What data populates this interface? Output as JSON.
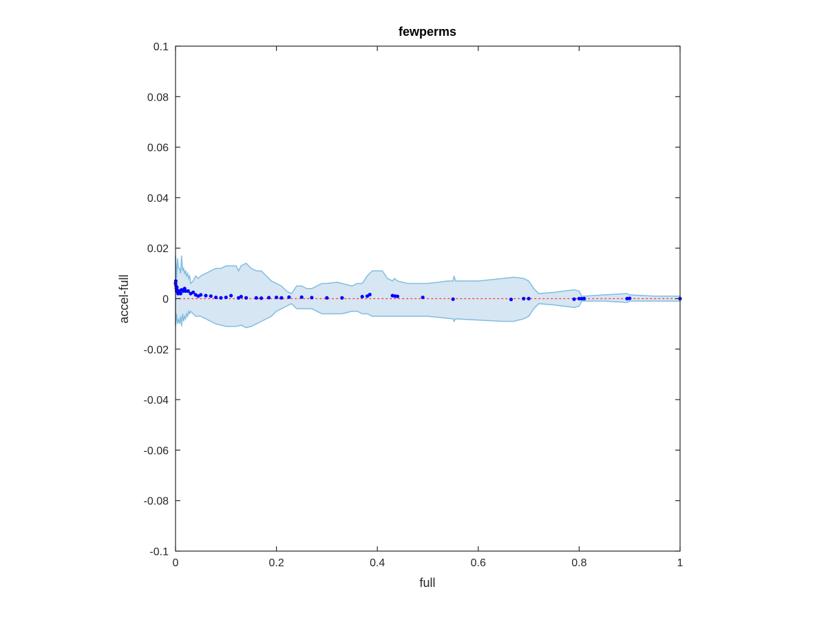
{
  "chart_data": {
    "type": "scatter",
    "title": "fewperms",
    "xlabel": "full",
    "ylabel": "accel-full",
    "xlim": [
      0,
      1
    ],
    "ylim": [
      -0.1,
      0.1
    ],
    "xticks": [
      "0",
      "0.2",
      "0.4",
      "0.6",
      "0.8",
      "1"
    ],
    "yticks": [
      "-0.1",
      "-0.08",
      "-0.06",
      "-0.04",
      "-0.02",
      "0",
      "0.02",
      "0.04",
      "0.06",
      "0.08",
      "0.1"
    ],
    "grid": false,
    "legend": "none",
    "colors": {
      "points": "#0000ff",
      "band_fill": "#d6e6f3",
      "band_edge": "#82bde0",
      "zero_line": "#ff4444"
    },
    "band_upper": [
      [
        0,
        0.017
      ],
      [
        0.002,
        0.008
      ],
      [
        0.004,
        0.016
      ],
      [
        0.006,
        0.012
      ],
      [
        0.008,
        0.012
      ],
      [
        0.01,
        0.01
      ],
      [
        0.012,
        0.017
      ],
      [
        0.014,
        0.011
      ],
      [
        0.016,
        0.012
      ],
      [
        0.018,
        0.01
      ],
      [
        0.02,
        0.011
      ],
      [
        0.022,
        0.009
      ],
      [
        0.024,
        0.01
      ],
      [
        0.026,
        0.008
      ],
      [
        0.028,
        0.009
      ],
      [
        0.03,
        0.006
      ],
      [
        0.035,
        0.007
      ],
      [
        0.04,
        0.009
      ],
      [
        0.045,
        0.008
      ],
      [
        0.05,
        0.009
      ],
      [
        0.06,
        0.01
      ],
      [
        0.07,
        0.011
      ],
      [
        0.08,
        0.012
      ],
      [
        0.09,
        0.012
      ],
      [
        0.1,
        0.013
      ],
      [
        0.11,
        0.013
      ],
      [
        0.12,
        0.013
      ],
      [
        0.125,
        0.011
      ],
      [
        0.13,
        0.013
      ],
      [
        0.14,
        0.014
      ],
      [
        0.15,
        0.012
      ],
      [
        0.16,
        0.011
      ],
      [
        0.17,
        0.011
      ],
      [
        0.18,
        0.009
      ],
      [
        0.19,
        0.007
      ],
      [
        0.2,
        0.006
      ],
      [
        0.21,
        0.005
      ],
      [
        0.22,
        0.003
      ],
      [
        0.23,
        0.002
      ],
      [
        0.24,
        0.005
      ],
      [
        0.25,
        0.005
      ],
      [
        0.26,
        0.004
      ],
      [
        0.27,
        0.004
      ],
      [
        0.28,
        0.005
      ],
      [
        0.29,
        0.006
      ],
      [
        0.3,
        0.006
      ],
      [
        0.32,
        0.0065
      ],
      [
        0.33,
        0.006
      ],
      [
        0.35,
        0.005
      ],
      [
        0.36,
        0.006
      ],
      [
        0.37,
        0.006
      ],
      [
        0.38,
        0.009
      ],
      [
        0.39,
        0.011
      ],
      [
        0.4,
        0.011
      ],
      [
        0.41,
        0.011
      ],
      [
        0.42,
        0.008
      ],
      [
        0.43,
        0.007
      ],
      [
        0.434,
        0.008
      ],
      [
        0.44,
        0.007
      ],
      [
        0.46,
        0.006
      ],
      [
        0.48,
        0.006
      ],
      [
        0.5,
        0.006
      ],
      [
        0.54,
        0.007
      ],
      [
        0.55,
        0.007
      ],
      [
        0.552,
        0.009
      ],
      [
        0.555,
        0.007
      ],
      [
        0.6,
        0.007
      ],
      [
        0.65,
        0.008
      ],
      [
        0.67,
        0.0085
      ],
      [
        0.69,
        0.008
      ],
      [
        0.7,
        0.007
      ],
      [
        0.71,
        0.004
      ],
      [
        0.72,
        0.002
      ],
      [
        0.75,
        0.0025
      ],
      [
        0.79,
        0.0035
      ],
      [
        0.8,
        0.003
      ],
      [
        0.805,
        0.001
      ],
      [
        0.81,
        0.001
      ],
      [
        0.85,
        0.0015
      ],
      [
        0.895,
        0.002
      ],
      [
        0.9,
        0.0015
      ],
      [
        0.95,
        0.001
      ],
      [
        1,
        0.001
      ]
    ],
    "band_lower": [
      [
        0,
        -0.011
      ],
      [
        0.002,
        -0.006
      ],
      [
        0.004,
        -0.01
      ],
      [
        0.006,
        -0.008
      ],
      [
        0.008,
        -0.01
      ],
      [
        0.01,
        -0.007
      ],
      [
        0.012,
        -0.011
      ],
      [
        0.014,
        -0.006
      ],
      [
        0.016,
        -0.009
      ],
      [
        0.018,
        -0.007
      ],
      [
        0.02,
        -0.008
      ],
      [
        0.022,
        -0.006
      ],
      [
        0.024,
        -0.007
      ],
      [
        0.026,
        -0.005
      ],
      [
        0.028,
        -0.006
      ],
      [
        0.03,
        -0.005
      ],
      [
        0.035,
        -0.006
      ],
      [
        0.04,
        -0.007
      ],
      [
        0.05,
        -0.007
      ],
      [
        0.06,
        -0.008
      ],
      [
        0.07,
        -0.009
      ],
      [
        0.08,
        -0.01
      ],
      [
        0.09,
        -0.0105
      ],
      [
        0.1,
        -0.011
      ],
      [
        0.11,
        -0.011
      ],
      [
        0.12,
        -0.011
      ],
      [
        0.13,
        -0.0105
      ],
      [
        0.14,
        -0.0115
      ],
      [
        0.15,
        -0.011
      ],
      [
        0.16,
        -0.01
      ],
      [
        0.17,
        -0.009
      ],
      [
        0.18,
        -0.008
      ],
      [
        0.19,
        -0.007
      ],
      [
        0.2,
        -0.005
      ],
      [
        0.21,
        -0.004
      ],
      [
        0.22,
        -0.003
      ],
      [
        0.23,
        -0.002
      ],
      [
        0.24,
        -0.004
      ],
      [
        0.25,
        -0.004
      ],
      [
        0.26,
        -0.004
      ],
      [
        0.27,
        -0.004
      ],
      [
        0.28,
        -0.005
      ],
      [
        0.29,
        -0.006
      ],
      [
        0.3,
        -0.006
      ],
      [
        0.32,
        -0.006
      ],
      [
        0.33,
        -0.006
      ],
      [
        0.35,
        -0.005
      ],
      [
        0.36,
        -0.005
      ],
      [
        0.37,
        -0.006
      ],
      [
        0.38,
        -0.006
      ],
      [
        0.39,
        -0.007
      ],
      [
        0.4,
        -0.007
      ],
      [
        0.43,
        -0.007
      ],
      [
        0.44,
        -0.007
      ],
      [
        0.48,
        -0.007
      ],
      [
        0.5,
        -0.007
      ],
      [
        0.55,
        -0.008
      ],
      [
        0.552,
        -0.009
      ],
      [
        0.555,
        -0.008
      ],
      [
        0.6,
        -0.0085
      ],
      [
        0.65,
        -0.009
      ],
      [
        0.67,
        -0.009
      ],
      [
        0.69,
        -0.008
      ],
      [
        0.7,
        -0.007
      ],
      [
        0.71,
        -0.004
      ],
      [
        0.72,
        -0.002
      ],
      [
        0.75,
        -0.0025
      ],
      [
        0.79,
        -0.0035
      ],
      [
        0.8,
        -0.003
      ],
      [
        0.805,
        -0.001
      ],
      [
        0.81,
        -0.001
      ],
      [
        0.85,
        -0.001
      ],
      [
        0.895,
        -0.0015
      ],
      [
        0.9,
        -0.001
      ],
      [
        0.95,
        -0.001
      ],
      [
        1,
        -0.001
      ]
    ],
    "points": [
      [
        0,
        0.006
      ],
      [
        0.0005,
        0.007
      ],
      [
        0.001,
        0.005
      ],
      [
        0.0015,
        0.004
      ],
      [
        0.002,
        0.003
      ],
      [
        0.0025,
        0.0045
      ],
      [
        0.003,
        0.0035
      ],
      [
        0.004,
        0.003
      ],
      [
        0.005,
        0.002
      ],
      [
        0.006,
        0.0025
      ],
      [
        0.008,
        0.003
      ],
      [
        0.01,
        0.002
      ],
      [
        0.012,
        0.0035
      ],
      [
        0.015,
        0.003
      ],
      [
        0.018,
        0.004
      ],
      [
        0.02,
        0.003
      ],
      [
        0.025,
        0.003
      ],
      [
        0.03,
        0.002
      ],
      [
        0.035,
        0.0025
      ],
      [
        0.04,
        0.0015
      ],
      [
        0.045,
        0.001
      ],
      [
        0.05,
        0.0015
      ],
      [
        0.06,
        0.0012
      ],
      [
        0.07,
        0.001
      ],
      [
        0.08,
        0.0005
      ],
      [
        0.09,
        0.0003
      ],
      [
        0.1,
        0.0005
      ],
      [
        0.11,
        0.0012
      ],
      [
        0.125,
        0.0003
      ],
      [
        0.13,
        0.0008
      ],
      [
        0.14,
        0.0003
      ],
      [
        0.16,
        0.0003
      ],
      [
        0.17,
        0.0002
      ],
      [
        0.185,
        0.0004
      ],
      [
        0.2,
        0.0005
      ],
      [
        0.21,
        0.0003
      ],
      [
        0.225,
        0.0006
      ],
      [
        0.25,
        0.0006
      ],
      [
        0.27,
        0.0004
      ],
      [
        0.3,
        0.0003
      ],
      [
        0.33,
        0.0003
      ],
      [
        0.37,
        0.0008
      ],
      [
        0.38,
        0.001
      ],
      [
        0.385,
        0.0016
      ],
      [
        0.43,
        0.0012
      ],
      [
        0.435,
        0.001
      ],
      [
        0.44,
        0.0009
      ],
      [
        0.49,
        0.0005
      ],
      [
        0.55,
        -0.0002
      ],
      [
        0.665,
        -0.0003
      ],
      [
        0.69,
        0
      ],
      [
        0.7,
        0
      ],
      [
        0.79,
        -0.0002
      ],
      [
        0.8,
        0
      ],
      [
        0.805,
        0
      ],
      [
        0.81,
        0
      ],
      [
        0.895,
        0
      ],
      [
        0.9,
        0.0001
      ],
      [
        1,
        0
      ]
    ],
    "zero_line_y": 0
  }
}
